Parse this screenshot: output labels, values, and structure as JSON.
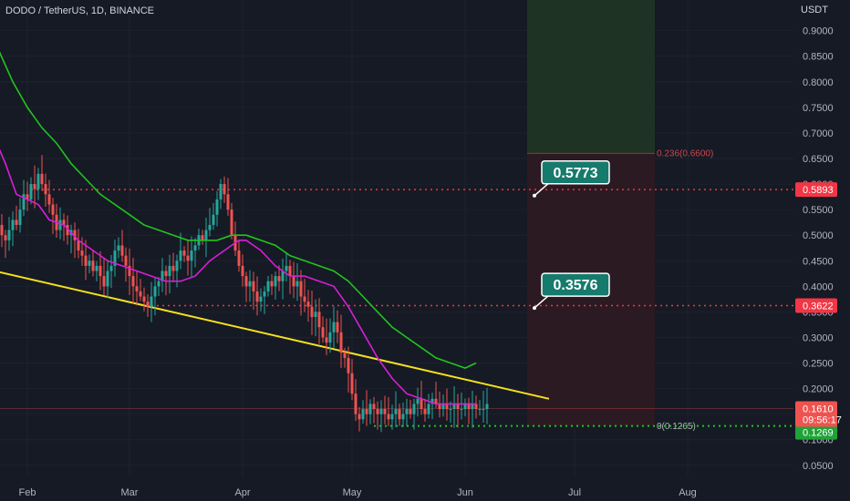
{
  "symbol_title": "DODO / TetherUS, 1D, BINANCE",
  "currency": "USDT",
  "colors": {
    "background": "#161a25",
    "grid": "#1e2230",
    "up": "#26a69a",
    "down": "#ef5350",
    "ma_fast": "#d61fd6",
    "ma_slow": "#22c41e",
    "trendline": "#f5e11d",
    "resistance": "#f23645",
    "support": "#22c41e",
    "callout_bg": "#167a6c",
    "profit_zone": "#1e3323",
    "loss_zone": "#2b1a22"
  },
  "chart_data": {
    "type": "candlestick",
    "ylim": [
      0.03,
      0.96
    ],
    "y_ticks": [
      "0.9000",
      "0.8500",
      "0.8000",
      "0.7500",
      "0.7000",
      "0.6500",
      "0.6000",
      "0.5500",
      "0.5000",
      "0.4500",
      "0.4000",
      "0.3500",
      "0.3000",
      "0.2500",
      "0.2000",
      "0.1500",
      "0.1000",
      "0.0500"
    ],
    "x_ticks": [
      {
        "label": "Feb",
        "day": 6
      },
      {
        "label": "Mar",
        "day": 34
      },
      {
        "label": "Apr",
        "day": 65
      },
      {
        "label": "May",
        "day": 95
      },
      {
        "label": "Jun",
        "day": 126
      },
      {
        "label": "Jul",
        "day": 156
      },
      {
        "label": "Aug",
        "day": 187
      }
    ],
    "candle_range_days": [
      -3,
      133
    ],
    "seed_close": 0.51,
    "closes": [
      0.51,
      0.52,
      0.5,
      0.49,
      0.51,
      0.53,
      0.52,
      0.55,
      0.58,
      0.57,
      0.6,
      0.59,
      0.62,
      0.6,
      0.58,
      0.56,
      0.54,
      0.51,
      0.53,
      0.52,
      0.5,
      0.51,
      0.49,
      0.47,
      0.46,
      0.44,
      0.45,
      0.43,
      0.44,
      0.42,
      0.4,
      0.43,
      0.44,
      0.47,
      0.48,
      0.46,
      0.44,
      0.42,
      0.4,
      0.39,
      0.38,
      0.37,
      0.36,
      0.38,
      0.4,
      0.41,
      0.43,
      0.42,
      0.44,
      0.43,
      0.45,
      0.47,
      0.46,
      0.45,
      0.47,
      0.48,
      0.5,
      0.49,
      0.51,
      0.52,
      0.54,
      0.57,
      0.6,
      0.58,
      0.55,
      0.5,
      0.47,
      0.44,
      0.42,
      0.4,
      0.41,
      0.39,
      0.37,
      0.38,
      0.39,
      0.41,
      0.4,
      0.42,
      0.41,
      0.43,
      0.44,
      0.42,
      0.4,
      0.41,
      0.38,
      0.37,
      0.36,
      0.34,
      0.35,
      0.32,
      0.3,
      0.29,
      0.31,
      0.33,
      0.31,
      0.27,
      0.26,
      0.23,
      0.19,
      0.15,
      0.14,
      0.16,
      0.15,
      0.17,
      0.16,
      0.15,
      0.16,
      0.15,
      0.14,
      0.15,
      0.16,
      0.14,
      0.15,
      0.16,
      0.15,
      0.17,
      0.18,
      0.16,
      0.15,
      0.17,
      0.18,
      0.17,
      0.16,
      0.17,
      0.16,
      0.16,
      0.17,
      0.16,
      0.16,
      0.17,
      0.16,
      0.17,
      0.16,
      0.16,
      0.16,
      0.17
    ],
    "ma_fast": [
      [
        -3,
        0.69
      ],
      [
        0,
        0.64
      ],
      [
        3,
        0.58
      ],
      [
        6,
        0.57
      ],
      [
        9,
        0.56
      ],
      [
        12,
        0.53
      ],
      [
        16,
        0.52
      ],
      [
        20,
        0.49
      ],
      [
        24,
        0.47
      ],
      [
        28,
        0.45
      ],
      [
        32,
        0.44
      ],
      [
        36,
        0.43
      ],
      [
        40,
        0.42
      ],
      [
        44,
        0.41
      ],
      [
        48,
        0.41
      ],
      [
        52,
        0.42
      ],
      [
        56,
        0.45
      ],
      [
        60,
        0.47
      ],
      [
        64,
        0.49
      ],
      [
        66,
        0.49
      ],
      [
        70,
        0.47
      ],
      [
        74,
        0.44
      ],
      [
        78,
        0.42
      ],
      [
        82,
        0.42
      ],
      [
        86,
        0.41
      ],
      [
        90,
        0.4
      ],
      [
        94,
        0.36
      ],
      [
        98,
        0.31
      ],
      [
        102,
        0.26
      ],
      [
        106,
        0.22
      ],
      [
        110,
        0.19
      ],
      [
        114,
        0.18
      ],
      [
        118,
        0.17
      ],
      [
        122,
        0.17
      ],
      [
        126,
        0.17
      ],
      [
        129,
        0.17
      ]
    ],
    "ma_slow": [
      [
        -3,
        0.88
      ],
      [
        2,
        0.8
      ],
      [
        6,
        0.75
      ],
      [
        10,
        0.71
      ],
      [
        14,
        0.68
      ],
      [
        18,
        0.64
      ],
      [
        22,
        0.61
      ],
      [
        26,
        0.58
      ],
      [
        30,
        0.56
      ],
      [
        34,
        0.54
      ],
      [
        38,
        0.52
      ],
      [
        42,
        0.51
      ],
      [
        46,
        0.5
      ],
      [
        50,
        0.49
      ],
      [
        54,
        0.49
      ],
      [
        58,
        0.49
      ],
      [
        62,
        0.5
      ],
      [
        66,
        0.5
      ],
      [
        70,
        0.49
      ],
      [
        74,
        0.48
      ],
      [
        78,
        0.46
      ],
      [
        82,
        0.45
      ],
      [
        86,
        0.44
      ],
      [
        90,
        0.43
      ],
      [
        94,
        0.41
      ],
      [
        98,
        0.38
      ],
      [
        102,
        0.35
      ],
      [
        106,
        0.32
      ],
      [
        110,
        0.3
      ],
      [
        114,
        0.28
      ],
      [
        118,
        0.26
      ],
      [
        122,
        0.25
      ],
      [
        126,
        0.24
      ],
      [
        129,
        0.25
      ]
    ],
    "trendline": {
      "from": [
        -3,
        0.43
      ],
      "to": [
        149,
        0.18
      ]
    },
    "resistance_levels": [
      {
        "value": 0.5893,
        "label": "0.5893",
        "from_day": 7
      },
      {
        "value": 0.3622,
        "label": "0.3622",
        "from_day": 40
      }
    ],
    "support_level": {
      "value": 0.1269,
      "label": "0.1269",
      "from_day": 101
    },
    "current_price": {
      "value": 0.161,
      "label": "0.1610",
      "countdown": "09:56:17"
    },
    "fib_levels": [
      {
        "label": "0.236(0.6600)",
        "value": 0.66
      },
      {
        "label": "0(0.1265)",
        "value": 0.1265
      }
    ],
    "projection_box": {
      "from_day": 143,
      "to_day": 178,
      "top": 0.96,
      "mid": 0.66,
      "bottom": 0.1265
    },
    "callouts": [
      {
        "text": "0.5773",
        "value": 0.5773,
        "day": 146
      },
      {
        "text": "0.3576",
        "value": 0.3576,
        "day": 146
      }
    ]
  }
}
